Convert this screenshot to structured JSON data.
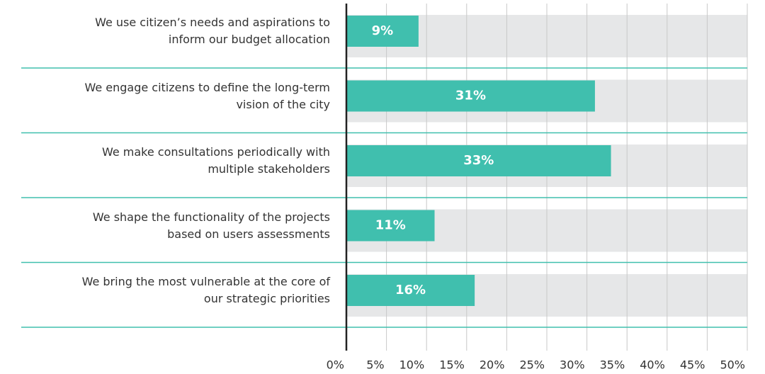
{
  "chart_data": {
    "type": "bar",
    "orientation": "horizontal",
    "categories": [
      "We use citizen’s needs and aspirations to inform our budget allocation",
      "We engage citizens to define the long-term vision of the city",
      "We make consultations periodically with multiple stakeholders",
      "We shape the functionality of the projects based on users assessments",
      "We bring the most vulnerable at the core of our strategic priorities"
    ],
    "values": [
      9,
      31,
      33,
      11,
      16
    ],
    "value_labels": [
      "9%",
      "31%",
      "33%",
      "11%",
      "16%"
    ],
    "color": "#40bfae",
    "background_color": "#e6e7e8",
    "xlim": [
      0,
      50
    ],
    "xticks": [
      {
        "value": 0,
        "label": "0%"
      },
      {
        "value": 5,
        "label": "5%"
      },
      {
        "value": 10,
        "label": "10%"
      },
      {
        "value": 15,
        "label": "15%"
      },
      {
        "value": 20,
        "label": "20%"
      },
      {
        "value": 25,
        "label": "25%"
      },
      {
        "value": 30,
        "label": "30%"
      },
      {
        "value": 35,
        "label": "35%"
      },
      {
        "value": 40,
        "label": "40%"
      },
      {
        "value": 45,
        "label": "45%"
      },
      {
        "value": 50,
        "label": "50%"
      }
    ],
    "grid": true
  }
}
